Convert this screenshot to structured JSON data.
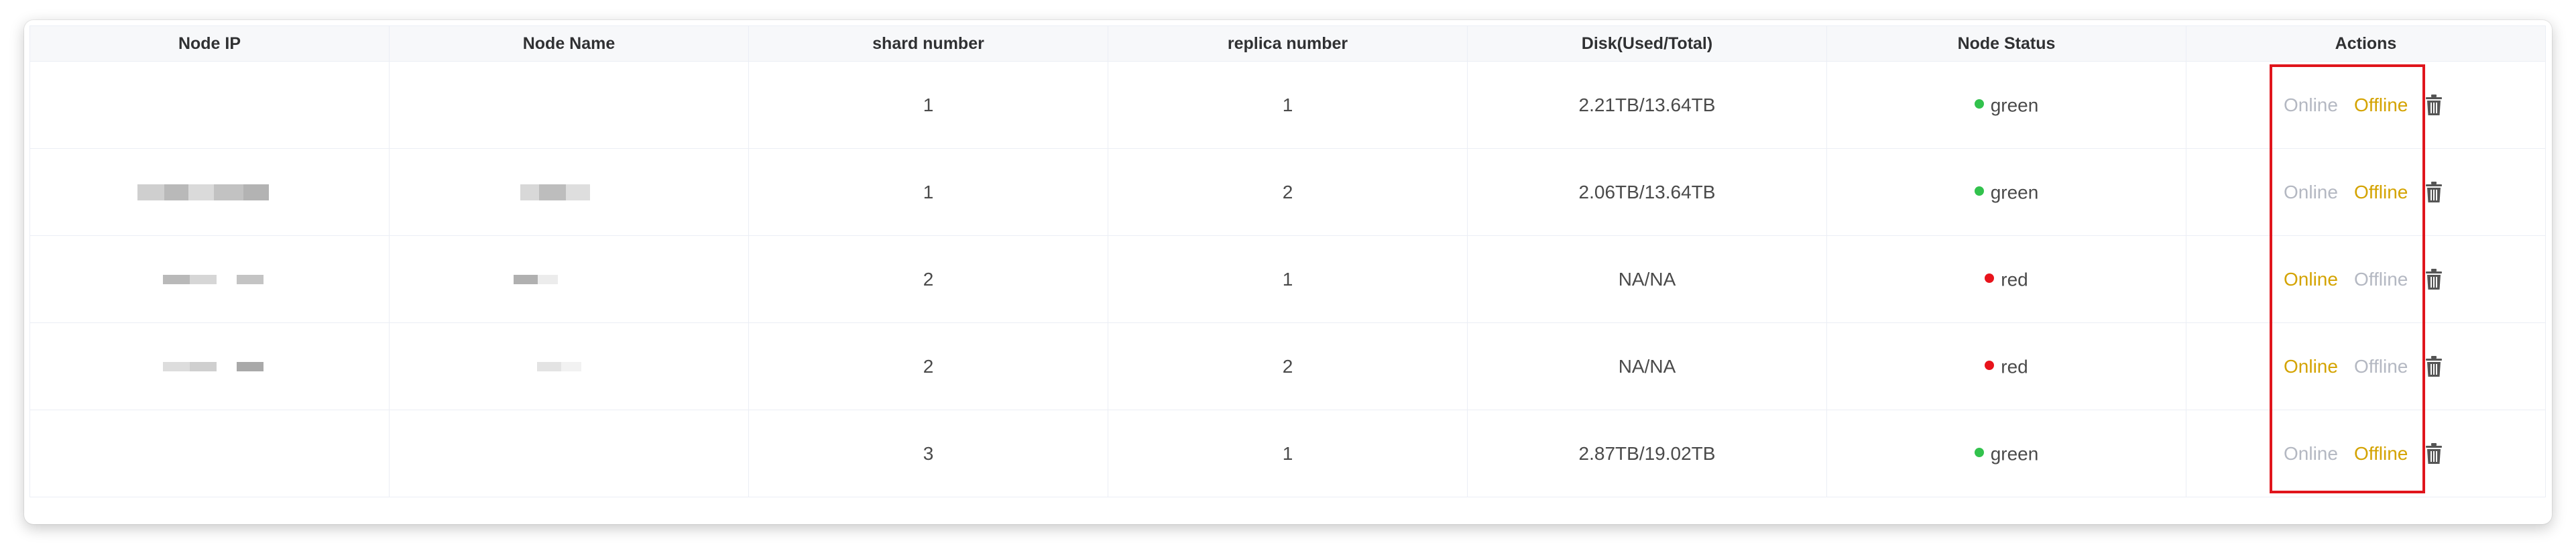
{
  "table": {
    "headers": [
      "Node IP",
      "Node Name",
      "shard number",
      "replica number",
      "Disk(Used/Total)",
      "Node Status",
      "Actions"
    ],
    "rows": [
      {
        "shard": "1",
        "replica": "1",
        "disk": "2.21TB/13.64TB",
        "status": "green",
        "online_label": "Online",
        "offline_label": "Offline",
        "online_enabled": false,
        "offline_enabled": true
      },
      {
        "shard": "1",
        "replica": "2",
        "disk": "2.06TB/13.64TB",
        "status": "green",
        "online_label": "Online",
        "offline_label": "Offline",
        "online_enabled": false,
        "offline_enabled": true
      },
      {
        "shard": "2",
        "replica": "1",
        "disk": "NA/NA",
        "status": "red",
        "online_label": "Online",
        "offline_label": "Offline",
        "online_enabled": true,
        "offline_enabled": false
      },
      {
        "shard": "2",
        "replica": "2",
        "disk": "NA/NA",
        "status": "red",
        "online_label": "Online",
        "offline_label": "Offline",
        "online_enabled": true,
        "offline_enabled": false
      },
      {
        "shard": "3",
        "replica": "1",
        "disk": "2.87TB/19.02TB",
        "status": "green",
        "online_label": "Online",
        "offline_label": "Offline",
        "online_enabled": false,
        "offline_enabled": true
      }
    ]
  },
  "colors": {
    "status_green": "#32c24d",
    "status_red": "#e8131b",
    "action_enabled": "#d4a300",
    "action_disabled": "#b4b8c2",
    "highlight": "#e0151c",
    "icon": "#555555"
  },
  "icons": {
    "delete": "trash-icon"
  }
}
